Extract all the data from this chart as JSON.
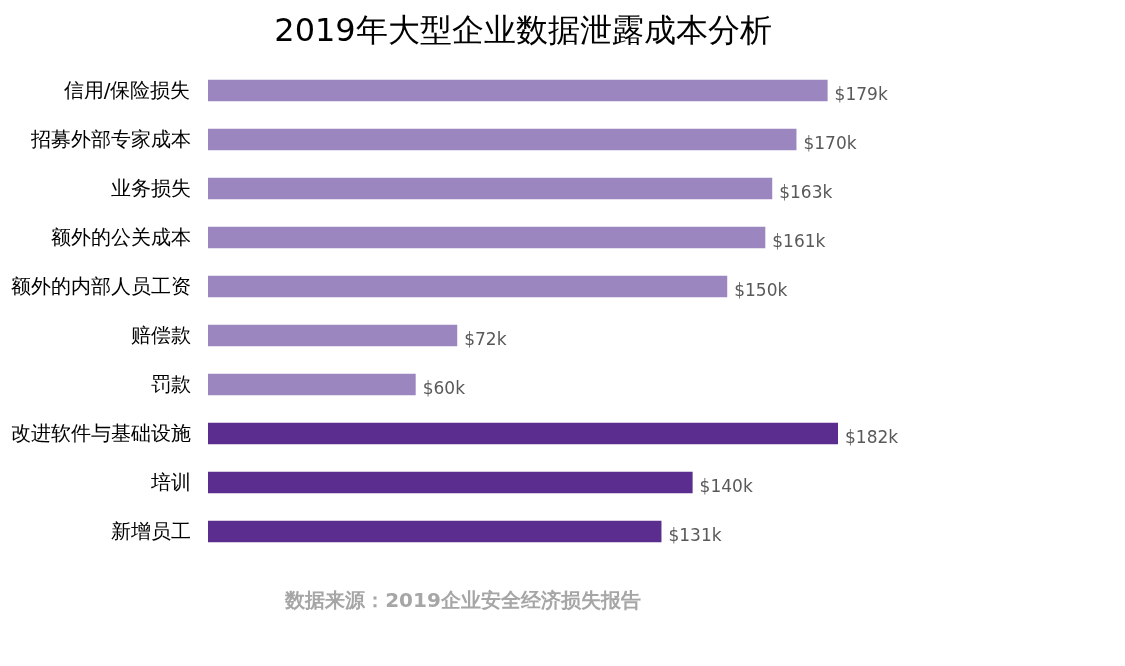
{
  "chart_data": {
    "type": "bar",
    "orientation": "horizontal",
    "title": "2019年大型企业数据泄露成本分析",
    "categories": [
      "信用/保险损失",
      "招募外部专家成本",
      "业务损失",
      "额外的公关成本",
      "额外的内部人员工资",
      "赔偿款",
      "罚款",
      "改进软件与基础设施",
      "培训",
      "新增员工"
    ],
    "values": [
      179,
      170,
      163,
      161,
      150,
      72,
      60,
      182,
      140,
      131
    ],
    "value_labels": [
      "$179k",
      "$170k",
      "$163k",
      "$161k",
      "$150k",
      "$72k",
      "$60k",
      "$182k",
      "$140k",
      "$131k"
    ],
    "colors": [
      "#9b86c0",
      "#9b86c0",
      "#9b86c0",
      "#9b86c0",
      "#9b86c0",
      "#9b86c0",
      "#9b86c0",
      "#5b2d8e",
      "#5b2d8e",
      "#5b2d8e"
    ],
    "annotations": [
      "数据来源：2019企业安全经济损失报告"
    ]
  }
}
